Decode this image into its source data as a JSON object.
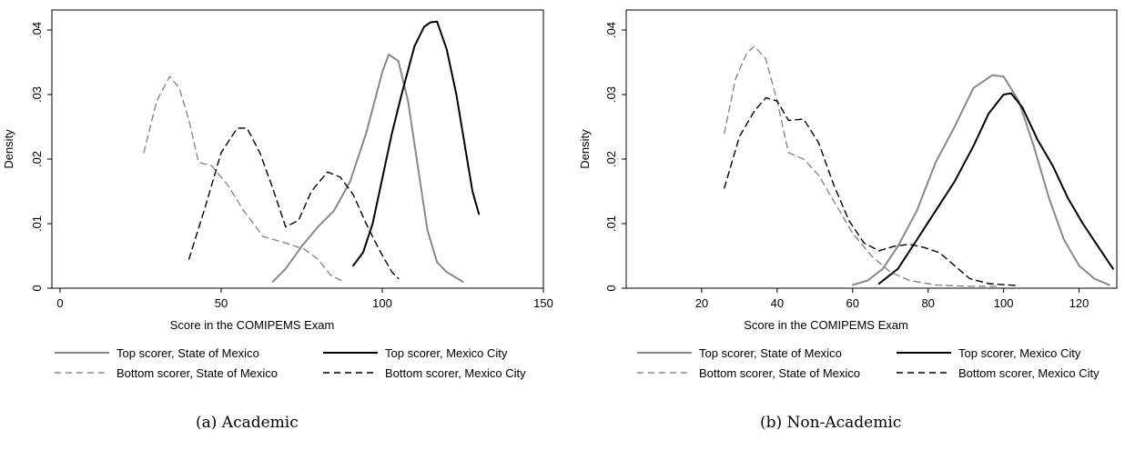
{
  "chart_data": [
    {
      "type": "line",
      "caption": "(a)  Academic",
      "xlabel": "Score in the COMIPEMS Exam",
      "ylabel": "Density",
      "xlim": [
        0,
        150
      ],
      "ylim": [
        0,
        0.04
      ],
      "xticks": [
        0,
        50,
        100,
        150
      ],
      "xtick_labels": [
        "0",
        "50",
        "100",
        "150"
      ],
      "yticks": [
        0,
        0.01,
        0.02,
        0.03,
        0.04
      ],
      "ytick_labels": [
        "0",
        ".01",
        ".02",
        ".03",
        ".04"
      ],
      "grid": false,
      "legend_position": "bottom",
      "series": [
        {
          "name": "Top scorer, State of Mexico",
          "color": "#888888",
          "style": "solid",
          "points": [
            [
              66,
              0.001
            ],
            [
              70,
              0.003
            ],
            [
              75,
              0.0065
            ],
            [
              80,
              0.0095
            ],
            [
              85,
              0.012
            ],
            [
              90,
              0.0165
            ],
            [
              95,
              0.024
            ],
            [
              100,
              0.0335
            ],
            [
              102,
              0.0362
            ],
            [
              105,
              0.0352
            ],
            [
              108,
              0.029
            ],
            [
              111,
              0.019
            ],
            [
              114,
              0.009
            ],
            [
              117,
              0.004
            ],
            [
              120,
              0.0025
            ],
            [
              125,
              0.001
            ]
          ]
        },
        {
          "name": "Top scorer, Mexico City",
          "color": "#000000",
          "style": "solid",
          "points": [
            [
              91,
              0.0035
            ],
            [
              94,
              0.0055
            ],
            [
              97,
              0.01
            ],
            [
              100,
              0.017
            ],
            [
              103,
              0.024
            ],
            [
              106,
              0.03
            ],
            [
              110,
              0.0375
            ],
            [
              113,
              0.0405
            ],
            [
              115,
              0.0412
            ],
            [
              117,
              0.0413
            ],
            [
              120,
              0.037
            ],
            [
              123,
              0.03
            ],
            [
              126,
              0.021
            ],
            [
              128,
              0.015
            ],
            [
              130,
              0.0115
            ]
          ]
        },
        {
          "name": "Bottom scorer, State of Mexico",
          "color": "#888888",
          "style": "dashed",
          "points": [
            [
              26,
              0.021
            ],
            [
              30,
              0.029
            ],
            [
              34,
              0.0328
            ],
            [
              37,
              0.031
            ],
            [
              40,
              0.026
            ],
            [
              43,
              0.0195
            ],
            [
              47,
              0.019
            ],
            [
              52,
              0.016
            ],
            [
              57,
              0.012
            ],
            [
              63,
              0.008
            ],
            [
              70,
              0.007
            ],
            [
              76,
              0.006
            ],
            [
              80,
              0.0045
            ],
            [
              84,
              0.002
            ],
            [
              88,
              0.001
            ]
          ]
        },
        {
          "name": "Bottom scorer, Mexico City",
          "color": "#000000",
          "style": "dashed",
          "points": [
            [
              40,
              0.0045
            ],
            [
              45,
              0.0125
            ],
            [
              50,
              0.021
            ],
            [
              55,
              0.0248
            ],
            [
              58,
              0.0248
            ],
            [
              62,
              0.021
            ],
            [
              66,
              0.0155
            ],
            [
              70,
              0.0095
            ],
            [
              74,
              0.0105
            ],
            [
              78,
              0.015
            ],
            [
              83,
              0.018
            ],
            [
              87,
              0.0172
            ],
            [
              91,
              0.0145
            ],
            [
              95,
              0.01
            ],
            [
              99,
              0.006
            ],
            [
              103,
              0.0025
            ],
            [
              105,
              0.0015
            ]
          ]
        }
      ]
    },
    {
      "type": "line",
      "caption": "(b)  Non-Academic",
      "xlabel": "Score in the COMIPEMS Exam",
      "ylabel": "Density",
      "xlim": [
        0,
        130
      ],
      "ylim": [
        0,
        0.04
      ],
      "xticks": [
        20,
        40,
        60,
        80,
        100,
        120
      ],
      "xtick_labels": [
        "20",
        "40",
        "60",
        "80",
        "100",
        "120"
      ],
      "yticks": [
        0,
        0.01,
        0.02,
        0.03,
        0.04
      ],
      "ytick_labels": [
        "0",
        ".01",
        ".02",
        ".03",
        ".04"
      ],
      "grid": false,
      "legend_position": "bottom",
      "series": [
        {
          "name": "Top scorer, State of Mexico",
          "color": "#888888",
          "style": "solid",
          "points": [
            [
              60,
              0.0005
            ],
            [
              64,
              0.0012
            ],
            [
              68,
              0.003
            ],
            [
              72,
              0.0065
            ],
            [
              77,
              0.012
            ],
            [
              82,
              0.0195
            ],
            [
              87,
              0.025
            ],
            [
              92,
              0.031
            ],
            [
              97,
              0.033
            ],
            [
              100,
              0.0328
            ],
            [
              104,
              0.029
            ],
            [
              108,
              0.022
            ],
            [
              112,
              0.014
            ],
            [
              116,
              0.0075
            ],
            [
              120,
              0.0035
            ],
            [
              124,
              0.0015
            ],
            [
              128,
              0.0005
            ]
          ]
        },
        {
          "name": "Top scorer, Mexico City",
          "color": "#000000",
          "style": "solid",
          "points": [
            [
              67,
              0.0007
            ],
            [
              72,
              0.003
            ],
            [
              77,
              0.0075
            ],
            [
              82,
              0.012
            ],
            [
              87,
              0.0165
            ],
            [
              92,
              0.022
            ],
            [
              96,
              0.027
            ],
            [
              100,
              0.03
            ],
            [
              102,
              0.0302
            ],
            [
              105,
              0.028
            ],
            [
              109,
              0.023
            ],
            [
              113,
              0.019
            ],
            [
              117,
              0.014
            ],
            [
              121,
              0.01
            ],
            [
              125,
              0.0065
            ],
            [
              129,
              0.003
            ]
          ]
        },
        {
          "name": "Bottom scorer, State of Mexico",
          "color": "#888888",
          "style": "dashed",
          "points": [
            [
              26,
              0.024
            ],
            [
              29,
              0.0325
            ],
            [
              32,
              0.0365
            ],
            [
              34,
              0.0375
            ],
            [
              37,
              0.0355
            ],
            [
              40,
              0.029
            ],
            [
              43,
              0.021
            ],
            [
              47,
              0.02
            ],
            [
              51,
              0.0175
            ],
            [
              55,
              0.0135
            ],
            [
              60,
              0.0085
            ],
            [
              65,
              0.005
            ],
            [
              70,
              0.0025
            ],
            [
              75,
              0.0012
            ],
            [
              82,
              0.0005
            ],
            [
              90,
              0.0003
            ],
            [
              98,
              0.0003
            ]
          ]
        },
        {
          "name": "Bottom scorer, Mexico City",
          "color": "#000000",
          "style": "dashed",
          "points": [
            [
              26,
              0.0155
            ],
            [
              30,
              0.0235
            ],
            [
              34,
              0.0275
            ],
            [
              37,
              0.0295
            ],
            [
              40,
              0.029
            ],
            [
              43,
              0.026
            ],
            [
              47,
              0.0262
            ],
            [
              51,
              0.0225
            ],
            [
              55,
              0.016
            ],
            [
              59,
              0.0105
            ],
            [
              63,
              0.007
            ],
            [
              67,
              0.0058
            ],
            [
              71,
              0.0065
            ],
            [
              75,
              0.0068
            ],
            [
              79,
              0.0063
            ],
            [
              83,
              0.0055
            ],
            [
              87,
              0.0035
            ],
            [
              91,
              0.0015
            ],
            [
              96,
              0.0007
            ],
            [
              104,
              0.0004
            ]
          ]
        }
      ]
    }
  ]
}
